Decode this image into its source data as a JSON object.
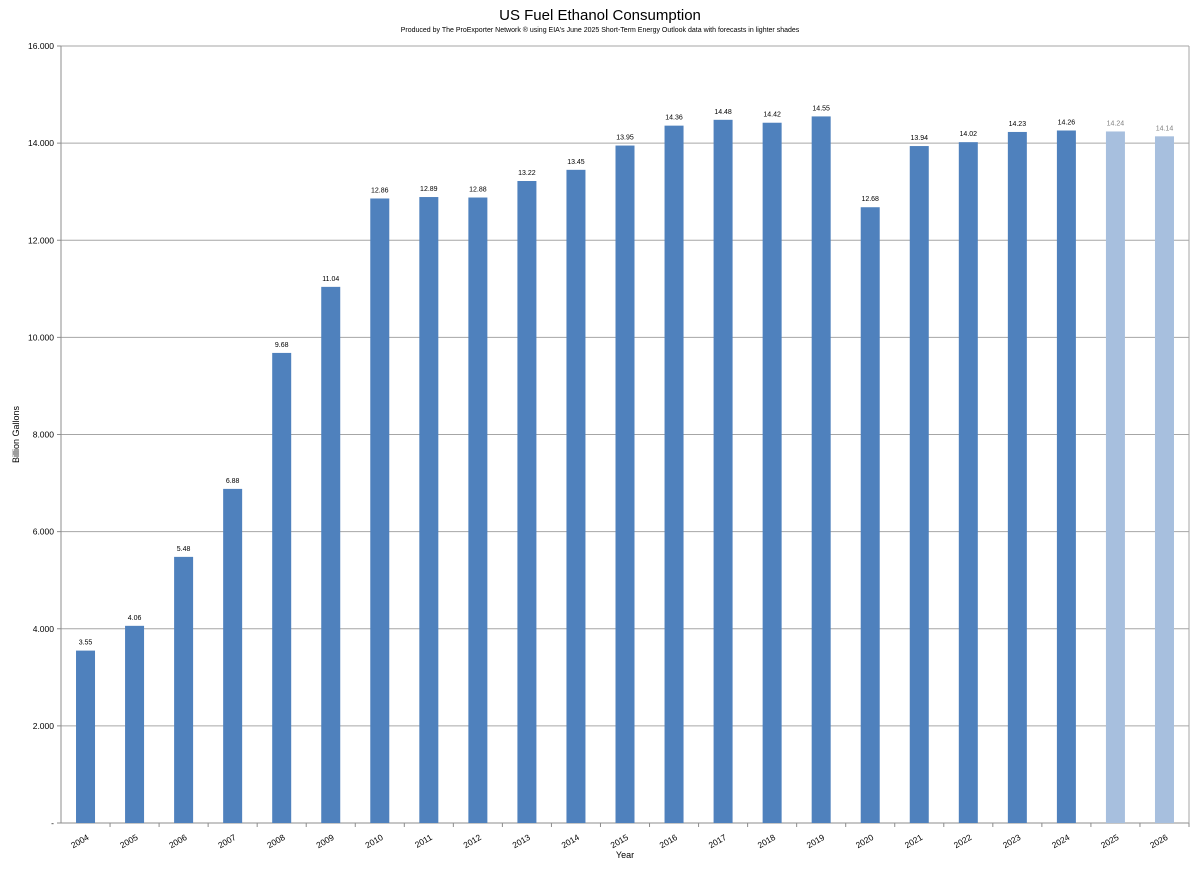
{
  "chart_data": {
    "type": "bar",
    "title": "US Fuel Ethanol Consumption",
    "subtitle": "Produced by The ProExporter Network ® using EIA's June 2025 Short-Term Energy Outlook data with forecasts in lighter shades",
    "xlabel": "Year",
    "ylabel": "Billion Gallons",
    "ylim": [
      0,
      16
    ],
    "yticks": [
      0,
      2,
      4,
      6,
      8,
      10,
      12,
      14,
      16
    ],
    "ytick_labels": [
      "-",
      "2.000",
      "4.000",
      "6.000",
      "8.000",
      "10.000",
      "12.000",
      "14.000",
      "16.000"
    ],
    "grid": true,
    "legend": "none",
    "categories": [
      "2004",
      "2005",
      "2006",
      "2007",
      "2008",
      "2009",
      "2010",
      "2011",
      "2012",
      "2013",
      "2014",
      "2015",
      "2016",
      "2017",
      "2018",
      "2019",
      "2020",
      "2021",
      "2022",
      "2023",
      "2024",
      "2025",
      "2026"
    ],
    "values": [
      3.55,
      4.06,
      5.48,
      6.88,
      9.68,
      11.04,
      12.86,
      12.89,
      12.88,
      13.22,
      13.45,
      13.95,
      14.36,
      14.48,
      14.42,
      14.55,
      12.68,
      13.94,
      14.02,
      14.23,
      14.26,
      14.24,
      14.14
    ],
    "data_labels": [
      "3.55",
      "4.06",
      "5.48",
      "6.88",
      "9.68",
      "11.04",
      "12.86",
      "12.89",
      "12.88",
      "13.22",
      "13.45",
      "13.95",
      "14.36",
      "14.48",
      "14.42",
      "14.55",
      "12.68",
      "13.94",
      "14.02",
      "14.23",
      "14.26",
      "14.24",
      "14.14"
    ],
    "forecast": [
      false,
      false,
      false,
      false,
      false,
      false,
      false,
      false,
      false,
      false,
      false,
      false,
      false,
      false,
      false,
      false,
      false,
      false,
      false,
      false,
      false,
      true,
      true
    ],
    "colors": {
      "actual": "#4f81bd",
      "forecast": "#a7bfde",
      "grid": "#a6a6a6",
      "axis": "#8c8c8c",
      "forecast_label": "#7f7f7f"
    }
  }
}
